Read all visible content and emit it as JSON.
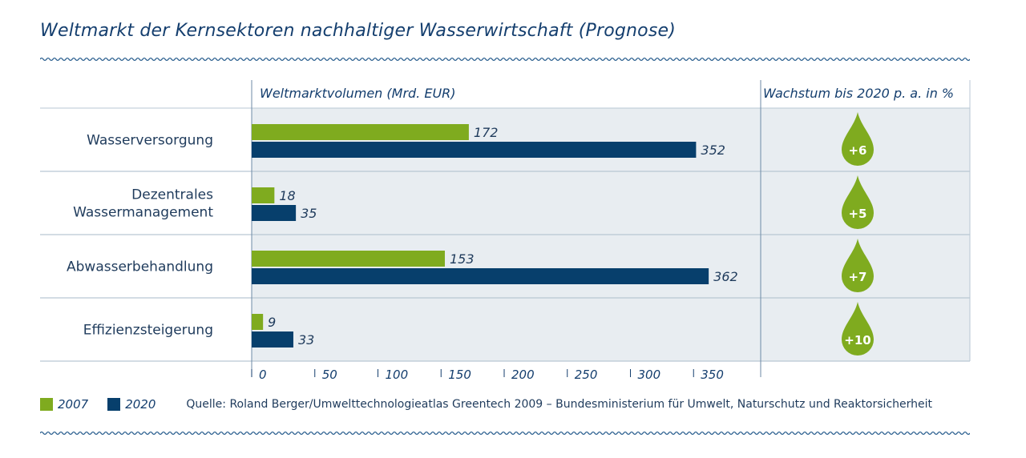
{
  "title": "Weltmarkt der Kernsektoren nachhaltiger Wasserwirtschaft (Prognose)",
  "colors": {
    "c2007": "#7fab1f",
    "c2020": "#073f6c",
    "panel": "#e8edf1",
    "grid": "#b9c7d4",
    "drop": "#7fab1f"
  },
  "chart_data": {
    "type": "bar",
    "orientation": "horizontal",
    "title": "Weltmarkt der Kernsektoren nachhaltiger Wasserwirtschaft (Prognose)",
    "xlabel": "Weltmarktvolumen (Mrd. EUR)",
    "growth_header": "Wachstum bis 2020 p. a. in %",
    "categories": [
      "Wasserversorgung",
      "Dezentrales Wassermanagement",
      "Abwasserbehandlung",
      "Effizienzsteigerung"
    ],
    "category_lines": [
      [
        "Wasserversorgung"
      ],
      [
        "Dezentrales",
        "Wassermanagement"
      ],
      [
        "Abwasserbehandlung"
      ],
      [
        "Effizienzsteigerung"
      ]
    ],
    "series": [
      {
        "name": "2007",
        "values": [
          172,
          18,
          153,
          9
        ],
        "color": "#7fab1f"
      },
      {
        "name": "2020",
        "values": [
          352,
          35,
          362,
          33
        ],
        "color": "#073f6c"
      }
    ],
    "growth": [
      "+6",
      "+5",
      "+7",
      "+10"
    ],
    "xlim": [
      0,
      400
    ],
    "ticks": [
      0,
      50,
      100,
      150,
      200,
      250,
      300,
      350
    ],
    "legend_position": "bottom-left"
  },
  "legend": {
    "label_2007": "2007",
    "label_2020": "2020"
  },
  "source": "Quelle: Roland Berger/Umwelttechnologieatlas Greentech 2009 – Bundesministerium für Umwelt, Naturschutz und Reaktorsicherheit"
}
